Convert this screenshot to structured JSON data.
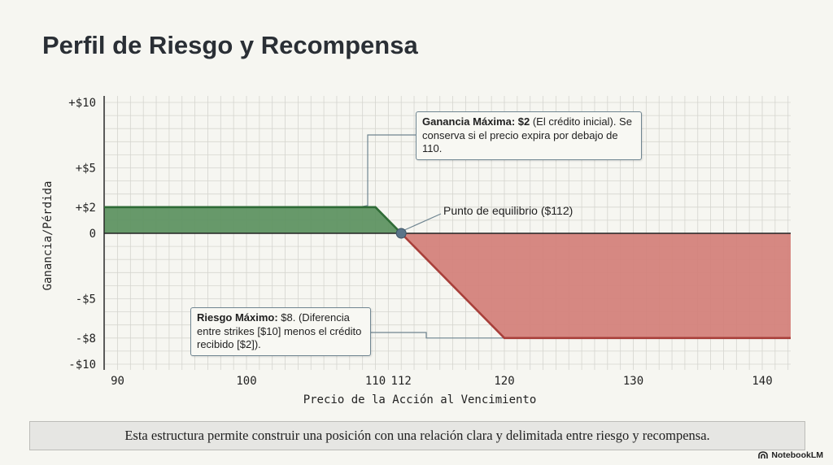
{
  "title": "Perfil de Riesgo y Recompensa",
  "chart_data": {
    "type": "area",
    "xlabel": "Precio de la Acción al Vencimiento",
    "ylabel": "Ganancia/Pérdida",
    "xlim": [
      88,
      142
    ],
    "ylim": [
      -10,
      10
    ],
    "x_ticks": [
      90,
      100,
      110,
      112,
      120,
      130,
      140
    ],
    "x_tick_labels": [
      "90",
      "100",
      "110",
      "112",
      "120",
      "130",
      "140"
    ],
    "y_ticks": [
      10,
      5,
      2,
      0,
      -5,
      -8,
      -10
    ],
    "y_tick_labels": [
      "+$10",
      "+$5",
      "+$2",
      "0",
      "-$5",
      "-$8",
      "-$10"
    ],
    "grid": true,
    "series": [
      {
        "x": [
          88,
          110,
          112,
          120,
          142
        ],
        "y": [
          2,
          2,
          0,
          -8,
          -8
        ]
      }
    ],
    "breakeven": {
      "x": 112,
      "y": 0,
      "label": "Punto de equilibrio ($112)"
    },
    "colors": {
      "profit_fill": "#5f9462",
      "profit_line": "#2f6b36",
      "loss_fill": "#d4827b",
      "loss_line": "#a83f3a",
      "marker": "#5a7489",
      "grid": "#d5d5cf"
    }
  },
  "annotations": {
    "max_gain": {
      "bold": "Ganancia Máxima: $2",
      "text": " (El crédito inicial). Se conserva si el precio expira por debajo de 110."
    },
    "max_risk": {
      "bold": "Riesgo Máximo:",
      "text": " $8. (Diferencia entre strikes [$10] menos el crédito recibido [$2])."
    }
  },
  "footer": "Esta estructura permite construir una posición con una relación clara y delimitada entre riesgo y recompensa.",
  "brand": "NotebookLM"
}
